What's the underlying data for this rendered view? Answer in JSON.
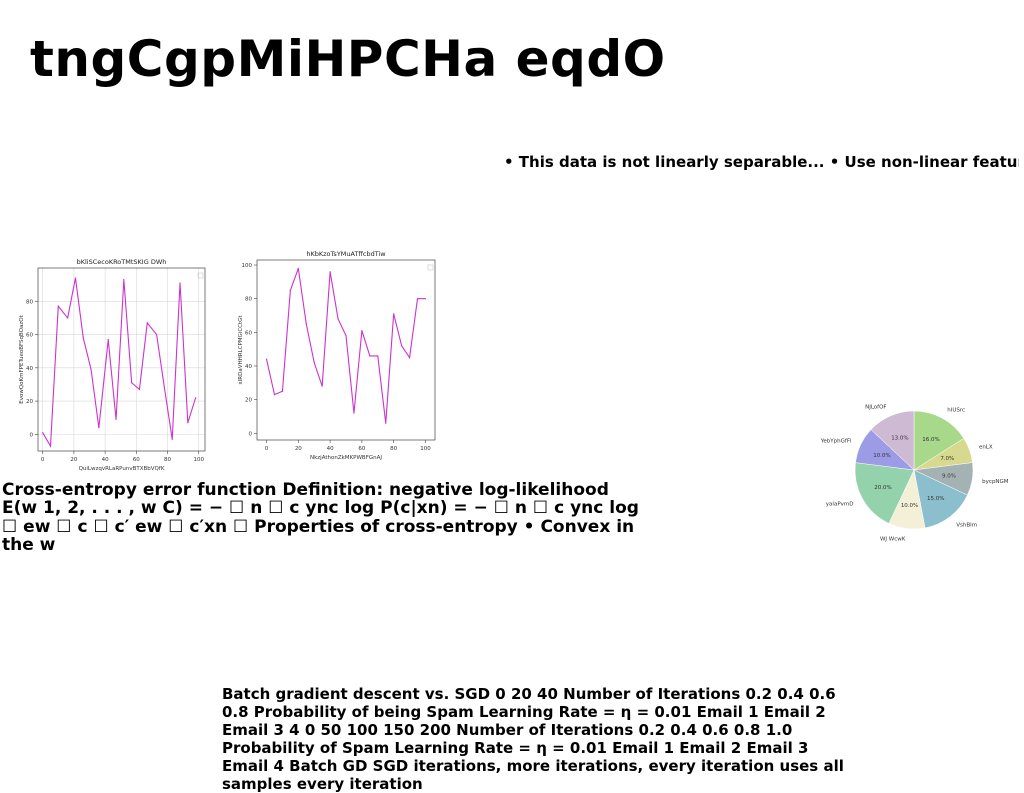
{
  "slide": {
    "title": "tngCgpMiHPCHa eqdO",
    "bullets": "• This data is not linearly separable... • Use non-linear feature",
    "cross_entropy_text": "Cross-entropy error function Definition: negative log-likelihood E(w 1, 2, . . . , w C) = − ☐ n ☐ c ync log P(c|xn) = − ☐ n ☐ c ync log ☐ ew ☐ c ☐ c′ ew ☐ c′xn ☐ Properties of cross-entropy • Convex in the w",
    "batch_text": "Batch gradient descent vs. SGD 0 20 40 Number of Iterations 0.2 0.4 0.6 0.8 Probability of being Spam Learning Rate = η = 0.01 Email 1 Email 2 Email 3 4 0 50 100 150 200 Number of Iterations 0.2 0.4 0.6 0.8 1.0 Probability of Spam Learning Rate = η = 0.01 Email 1 Email 2 Email 3 Email 4 Batch GD SGD iterations, more iterations, every iteration uses all samples every iteration"
  },
  "chart_data": [
    {
      "type": "line",
      "title": "bKliSCecoKRoTMtSKIG DWh",
      "xlabel": "QuiLwzqvRLaRPunvBTXBbVQfK",
      "ylabel": "EvowQoKmFPETueoBFSqBOazOt",
      "xlim": [
        -3,
        104
      ],
      "ylim": [
        -10,
        100
      ],
      "xticks": [
        0,
        20,
        40,
        60,
        80,
        100
      ],
      "yticks": [
        0,
        20,
        40,
        60,
        80
      ],
      "grid": true,
      "color": "#cc33cc",
      "series": [
        {
          "x": [
            0,
            5,
            10,
            16,
            21,
            26,
            31,
            36,
            42,
            47,
            52,
            57,
            62,
            67,
            73,
            78,
            83,
            88,
            93,
            98
          ],
          "values": [
            1,
            -7,
            77,
            70,
            94,
            58,
            39,
            4,
            57,
            9,
            93,
            31,
            27,
            67,
            60,
            28,
            -3,
            91,
            7,
            22
          ]
        }
      ]
    },
    {
      "type": "line",
      "title": "hKbKzoTsYMuATffcbdTiw",
      "xlabel": "NkzjAthonZkMKPWBFGnAJ",
      "ylabel": "xIRDaVHHRLCPMGiCCtGt",
      "xlim": [
        -6,
        106
      ],
      "ylim": [
        -4,
        103
      ],
      "xticks": [
        0,
        20,
        40,
        60,
        80,
        100
      ],
      "yticks": [
        0,
        20,
        40,
        60,
        80,
        100
      ],
      "grid": false,
      "color": "#cc33cc",
      "series": [
        {
          "x": [
            0,
            5,
            10,
            15,
            20,
            25,
            30,
            35,
            40,
            45,
            50,
            55,
            60,
            65,
            70,
            75,
            80,
            85,
            90,
            95,
            100
          ],
          "values": [
            44,
            23,
            25,
            85,
            98,
            65,
            42,
            28,
            96,
            68,
            58,
            12,
            61,
            46,
            46,
            6,
            71,
            52,
            45,
            80,
            80
          ]
        }
      ]
    },
    {
      "type": "pie",
      "labels": [
        "hIUSrc",
        "enLX",
        "bycpNGM",
        "VshBlm",
        "WJ WcwK",
        "yalaPvmD",
        "YebYphGfFl",
        "NJLofOF"
      ],
      "values": [
        16.0,
        7.0,
        9.0,
        15.0,
        10.0,
        20.0,
        10.0,
        13.0
      ],
      "value_labels": [
        "16.0%",
        "7.0%",
        "9.0%",
        "15.0%",
        "10.0%",
        "20.0%",
        "10.0%",
        "13.0%"
      ],
      "colors": [
        "#a8d98a",
        "#d6d98e",
        "#a4b2b4",
        "#8bbfce",
        "#f4f0d8",
        "#94d2ac",
        "#9b9be6",
        "#cfbad4"
      ]
    }
  ]
}
